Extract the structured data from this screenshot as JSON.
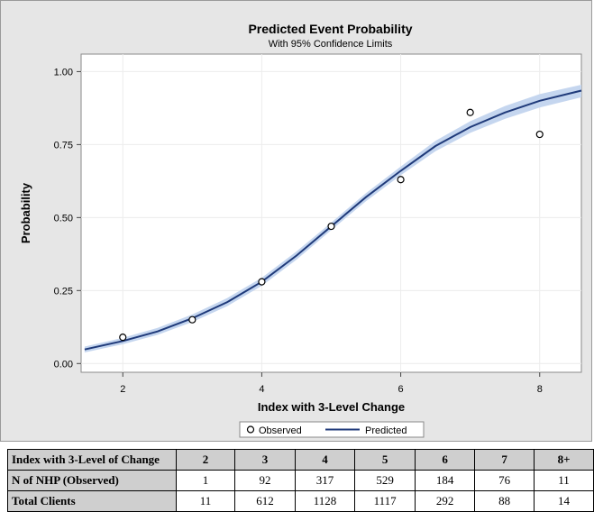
{
  "chart_data": {
    "type": "line",
    "title": "Predicted Event Probability",
    "subtitle": "With 95% Confidence Limits",
    "xlabel": "Index with 3-Level Change",
    "ylabel": "Probability",
    "xlim": [
      1.4,
      8.6
    ],
    "ylim": [
      -0.03,
      1.06
    ],
    "xticks": [
      2,
      4,
      6,
      8
    ],
    "yticks": [
      0.0,
      0.25,
      0.5,
      0.75,
      1.0
    ],
    "ytick_labels": [
      "0.00",
      "0.25",
      "0.50",
      "0.75",
      "1.00"
    ],
    "grid": true,
    "legend_placement": "bottom-center",
    "series": [
      {
        "name": "Observed",
        "kind": "scatter",
        "x": [
          2,
          3,
          4,
          5,
          6,
          7,
          8
        ],
        "y": [
          0.09,
          0.15,
          0.28,
          0.47,
          0.63,
          0.86,
          0.785
        ]
      },
      {
        "name": "Predicted",
        "kind": "line",
        "x": [
          1.45,
          2,
          2.5,
          3,
          3.5,
          4,
          4.5,
          5,
          5.5,
          6,
          6.5,
          7,
          7.5,
          8,
          8.6
        ],
        "y": [
          0.048,
          0.077,
          0.11,
          0.155,
          0.21,
          0.28,
          0.37,
          0.47,
          0.57,
          0.66,
          0.745,
          0.81,
          0.86,
          0.9,
          0.935
        ],
        "ci_lower": [
          0.038,
          0.066,
          0.098,
          0.142,
          0.196,
          0.266,
          0.356,
          0.457,
          0.556,
          0.645,
          0.727,
          0.79,
          0.838,
          0.877,
          0.912
        ],
        "ci_upper": [
          0.058,
          0.088,
          0.122,
          0.168,
          0.224,
          0.294,
          0.384,
          0.483,
          0.584,
          0.675,
          0.763,
          0.83,
          0.882,
          0.923,
          0.955
        ]
      }
    ],
    "colors": {
      "observed": "#000000",
      "predicted": "#1f3a7a",
      "band": "#c5d6ef",
      "frame_bg": "#e6e6e6",
      "grid": "#ececec"
    }
  },
  "table": {
    "header": [
      "Index with 3-Level of Change",
      "2",
      "3",
      "4",
      "5",
      "6",
      "7",
      "8+"
    ],
    "rows": [
      [
        "N of NHP (Observed)",
        "1",
        "92",
        "317",
        "529",
        "184",
        "76",
        "11"
      ],
      [
        "Total Clients",
        "11",
        "612",
        "1128",
        "1117",
        "292",
        "88",
        "14"
      ]
    ]
  }
}
